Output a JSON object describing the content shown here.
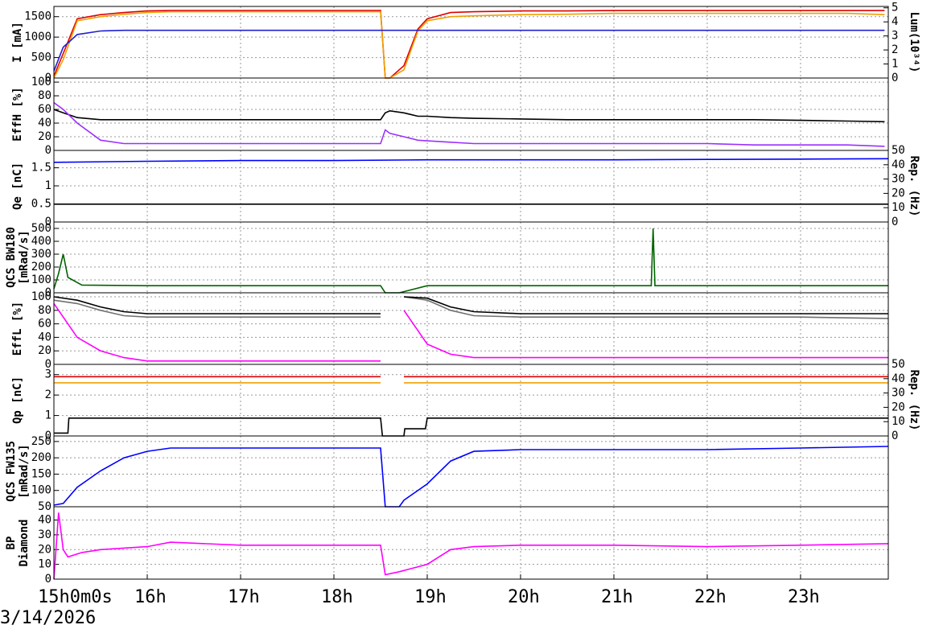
{
  "date": "3/14/2026",
  "chart_data": [
    {
      "type": "line",
      "ylabel": [
        "I [mA]"
      ],
      "y2label": [
        "Lum(10³⁴)"
      ],
      "xlim": [
        15,
        23.94
      ],
      "ylim": [
        0,
        1750
      ],
      "yticks": [
        0,
        500,
        1000,
        1500
      ],
      "y2lim": [
        0,
        5.1
      ],
      "y2ticks": [
        0,
        1,
        2,
        3,
        4,
        5
      ],
      "grid": true,
      "x": [
        15.0,
        15.1,
        15.25,
        15.5,
        15.75,
        16.0,
        16.25,
        16.5,
        17.0,
        17.5,
        18.0,
        18.5,
        18.55,
        18.6,
        18.75,
        18.9,
        19.0,
        19.25,
        19.5,
        20.0,
        20.5,
        21.0,
        21.5,
        22.0,
        22.5,
        23.0,
        23.5,
        23.9
      ],
      "series": [
        {
          "color": "#e00000",
          "values": [
            50,
            600,
            1450,
            1550,
            1600,
            1640,
            1650,
            1650,
            1650,
            1650,
            1650,
            1650,
            0,
            0,
            300,
            1200,
            1450,
            1600,
            1620,
            1640,
            1640,
            1650,
            1650,
            1650,
            1650,
            1650,
            1650,
            1650
          ]
        },
        {
          "color": "#f0a000",
          "values": [
            0,
            450,
            1400,
            1500,
            1560,
            1600,
            1620,
            1620,
            1620,
            1620,
            1620,
            1620,
            0,
            0,
            200,
            1150,
            1400,
            1500,
            1520,
            1550,
            1560,
            1580,
            1580,
            1580,
            1580,
            1580,
            1580,
            1550
          ]
        },
        {
          "color": "#2020d0",
          "axis": "y2",
          "values": [
            0.5,
            2.2,
            3.1,
            3.35,
            3.4,
            3.4,
            3.4,
            3.4,
            3.4,
            3.4,
            3.4,
            3.4,
            3.4,
            3.4,
            3.4,
            3.4,
            3.4,
            3.4,
            3.4,
            3.4,
            3.4,
            3.4,
            3.4,
            3.4,
            3.4,
            3.4,
            3.4,
            3.4
          ]
        }
      ]
    },
    {
      "type": "line",
      "ylabel": [
        "EffH [%]"
      ],
      "xlim": [
        15,
        23.94
      ],
      "ylim": [
        0,
        106
      ],
      "yticks": [
        0,
        20,
        40,
        60,
        80,
        100
      ],
      "grid": true,
      "x": [
        15.0,
        15.1,
        15.25,
        15.5,
        15.75,
        16.0,
        16.5,
        17.0,
        17.5,
        18.0,
        18.5,
        18.55,
        18.6,
        18.75,
        18.9,
        19.0,
        19.25,
        19.5,
        20.0,
        20.5,
        21.0,
        21.5,
        22.0,
        22.5,
        23.0,
        23.5,
        23.9
      ],
      "series": [
        {
          "color": "#000000",
          "values": [
            60,
            55,
            48,
            45,
            45,
            45,
            45,
            45,
            45,
            45,
            45,
            55,
            58,
            55,
            50,
            50,
            48,
            47,
            46,
            45,
            45,
            45,
            45,
            45,
            44,
            43,
            42
          ]
        },
        {
          "color": "#9b30ff",
          "values": [
            70,
            60,
            40,
            15,
            10,
            10,
            10,
            10,
            10,
            10,
            10,
            30,
            25,
            20,
            15,
            14,
            12,
            10,
            10,
            10,
            10,
            10,
            10,
            8,
            8,
            8,
            6
          ]
        }
      ]
    },
    {
      "type": "line",
      "ylabel": [
        "Qe [nC]"
      ],
      "y2label": [
        "Rep. (Hz)"
      ],
      "xlim": [
        15,
        23.94
      ],
      "ylim": [
        0,
        1.98
      ],
      "yticks": [
        0,
        0.5,
        1,
        1.5
      ],
      "y2lim": [
        0,
        50
      ],
      "y2ticks": [
        0,
        10,
        20,
        30,
        40,
        50
      ],
      "grid": true,
      "x": [
        15.0,
        16.0,
        17.0,
        18.0,
        19.0,
        20.0,
        21.0,
        22.0,
        23.0,
        23.94
      ],
      "series": [
        {
          "color": "#0000ff",
          "values": [
            1.65,
            1.68,
            1.7,
            1.7,
            1.72,
            1.72,
            1.72,
            1.73,
            1.74,
            1.75
          ]
        },
        {
          "color": "#000000",
          "axis": "y2",
          "values": [
            12.5,
            12.5,
            12.5,
            12.5,
            12.5,
            12.5,
            12.5,
            12.5,
            12.5,
            12.5
          ]
        }
      ]
    },
    {
      "type": "line",
      "ylabel": [
        "QCS BW180",
        "[mRad/s]"
      ],
      "xlim": [
        15,
        23.94
      ],
      "ylim": [
        0,
        550
      ],
      "yticks": [
        0,
        100,
        200,
        300,
        400,
        500
      ],
      "grid": true,
      "x": [
        15.0,
        15.05,
        15.1,
        15.15,
        15.3,
        16,
        17,
        18,
        18.5,
        18.55,
        18.7,
        19,
        20,
        21,
        21.4,
        21.42,
        21.44,
        22,
        23,
        23.94
      ],
      "series": [
        {
          "color": "#006400",
          "values": [
            30,
            150,
            300,
            120,
            60,
            55,
            55,
            55,
            55,
            0,
            0,
            55,
            55,
            55,
            55,
            500,
            55,
            55,
            55,
            55
          ]
        }
      ]
    },
    {
      "type": "line",
      "ylabel": [
        "EffL [%]"
      ],
      "xlim": [
        15,
        23.94
      ],
      "ylim": [
        0,
        106
      ],
      "yticks": [
        0,
        20,
        40,
        60,
        80,
        100
      ],
      "grid": true,
      "x": [
        15,
        15.25,
        15.5,
        15.75,
        16,
        16.5,
        17,
        18,
        18.5,
        18.55,
        18.7,
        18.75,
        19,
        19.25,
        19.5,
        20,
        21,
        22,
        23,
        23.94
      ],
      "series": [
        {
          "color": "#707070",
          "values": [
            95,
            90,
            80,
            72,
            70,
            70,
            70,
            70,
            70,
            null,
            null,
            100,
            95,
            80,
            72,
            70,
            70,
            70,
            70,
            68
          ]
        },
        {
          "color": "#000000",
          "values": [
            100,
            95,
            85,
            78,
            75,
            75,
            75,
            75,
            75,
            null,
            null,
            100,
            98,
            85,
            78,
            75,
            75,
            75,
            75,
            75
          ]
        },
        {
          "color": "#ff00ff",
          "values": [
            90,
            40,
            20,
            10,
            5,
            5,
            5,
            5,
            5,
            null,
            null,
            80,
            30,
            15,
            10,
            10,
            10,
            10,
            10,
            10
          ]
        }
      ]
    },
    {
      "type": "line",
      "ylabel": [
        "Qp [nC]"
      ],
      "y2label": [
        "Rep. (Hz)"
      ],
      "xlim": [
        15,
        23.94
      ],
      "ylim": [
        0,
        3.5
      ],
      "yticks": [
        0,
        1,
        2,
        3
      ],
      "y2lim": [
        0,
        50
      ],
      "y2ticks": [
        0,
        10,
        20,
        30,
        40,
        50
      ],
      "grid": true,
      "x": [
        15,
        15.1,
        15.5,
        16,
        17,
        18,
        18.5,
        18.55,
        18.7,
        18.75,
        19,
        19.5,
        20,
        21,
        22,
        23,
        23.94
      ],
      "series": [
        {
          "color": "#f0a000",
          "values": [
            2.6,
            2.6,
            2.6,
            2.6,
            2.6,
            2.6,
            2.6,
            null,
            null,
            2.6,
            2.6,
            2.6,
            2.6,
            2.6,
            2.6,
            2.6,
            2.6
          ]
        },
        {
          "color": "#e00000",
          "values": [
            2.9,
            2.9,
            2.9,
            2.9,
            2.9,
            2.9,
            2.9,
            null,
            null,
            2.9,
            2.9,
            2.9,
            2.9,
            2.9,
            2.9,
            2.9,
            2.9
          ]
        },
        {
          "color": "#000000",
          "axis": "y2",
          "x": [
            15,
            15.15,
            15.16,
            18.5,
            18.52,
            18.75,
            18.76,
            18.98,
            19.0,
            23.94
          ],
          "values": [
            2,
            2,
            12.5,
            12.5,
            0,
            0,
            5,
            5,
            12.5,
            12.5
          ]
        }
      ]
    },
    {
      "type": "line",
      "ylabel": [
        "QCS FW135",
        "[mRad/s]"
      ],
      "xlim": [
        15,
        23.94
      ],
      "ylim": [
        50,
        267
      ],
      "yticks": [
        50,
        100,
        150,
        200,
        250
      ],
      "grid": true,
      "x": [
        15,
        15.1,
        15.25,
        15.5,
        15.75,
        16,
        16.25,
        17,
        18,
        18.5,
        18.55,
        18.6,
        18.7,
        18.75,
        19,
        19.25,
        19.5,
        20,
        21,
        22,
        23,
        23.94
      ],
      "series": [
        {
          "color": "#0000ff",
          "values": [
            55,
            60,
            110,
            160,
            200,
            220,
            230,
            230,
            230,
            230,
            50,
            50,
            50,
            70,
            120,
            190,
            220,
            225,
            225,
            225,
            230,
            235
          ]
        }
      ]
    },
    {
      "type": "line",
      "ylabel": [
        "BP",
        "Diamond"
      ],
      "xlim": [
        15,
        23.94
      ],
      "ylim": [
        0,
        49
      ],
      "yticks": [
        0,
        10,
        20,
        30,
        40
      ],
      "grid": true,
      "xticks": [
        {
          "value": 15,
          "label": "15h0m0s"
        },
        {
          "value": 16,
          "label": "16h"
        },
        {
          "value": 17,
          "label": "17h"
        },
        {
          "value": 18,
          "label": "18h"
        },
        {
          "value": 19,
          "label": "19h"
        },
        {
          "value": 20,
          "label": "20h"
        },
        {
          "value": 21,
          "label": "21h"
        },
        {
          "value": 22,
          "label": "22h"
        },
        {
          "value": 23,
          "label": "23h"
        }
      ],
      "x": [
        15,
        15.05,
        15.1,
        15.15,
        15.3,
        15.5,
        16,
        16.25,
        17,
        18,
        18.5,
        18.55,
        18.7,
        19,
        19.25,
        19.5,
        20,
        21,
        22,
        23,
        23.94
      ],
      "series": [
        {
          "color": "#ff00ff",
          "values": [
            0,
            45,
            20,
            15,
            18,
            20,
            22,
            25,
            23,
            23,
            23,
            3,
            5,
            10,
            20,
            22,
            23,
            23,
            22,
            23,
            24
          ]
        }
      ]
    }
  ]
}
